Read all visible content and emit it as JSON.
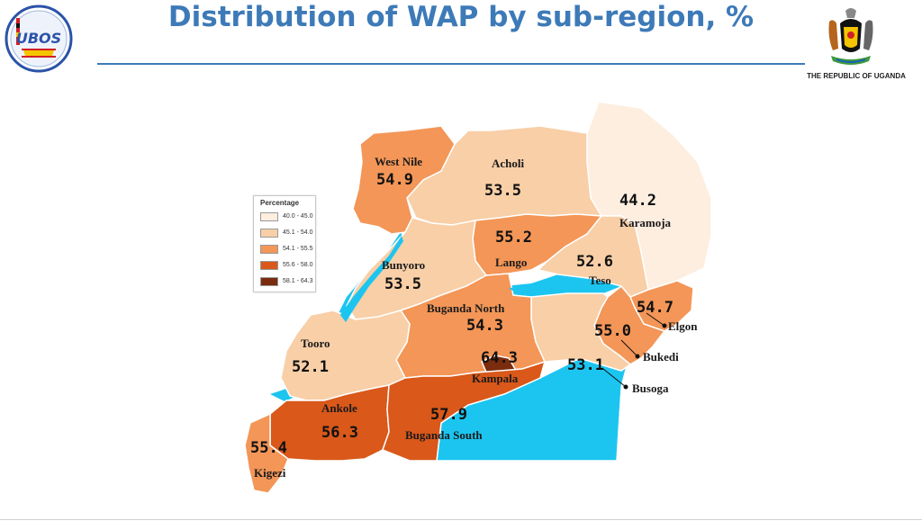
{
  "header": {
    "title": "Distribution of WAP by sub-region, %",
    "logo_text": "UBOS",
    "republic_text": "THE REPUBLIC OF UGANDA"
  },
  "legend": {
    "title": "Percentage",
    "items": [
      {
        "label": "40.0 - 45.0",
        "color": "#fdeee0"
      },
      {
        "label": "45.1 - 54.0",
        "color": "#f8cfa7"
      },
      {
        "label": "54.1 - 55.5",
        "color": "#f39657"
      },
      {
        "label": "55.6 - 58.0",
        "color": "#d9581a"
      },
      {
        "label": "58.1 - 64.3",
        "color": "#7b2b0e"
      }
    ]
  },
  "colors": {
    "water": "#1cc5f0",
    "title": "#3d7ab8",
    "border": "#ffffff"
  },
  "regions": [
    {
      "name": "West Nile",
      "value": "54.9"
    },
    {
      "name": "Acholi",
      "value": "53.5"
    },
    {
      "name": "Karamoja",
      "value": "44.2"
    },
    {
      "name": "Lango",
      "value": "55.2"
    },
    {
      "name": "Teso",
      "value": "52.6"
    },
    {
      "name": "Bunyoro",
      "value": "53.5"
    },
    {
      "name": "Buganda North",
      "value": "54.3"
    },
    {
      "name": "Elgon",
      "value": "54.7"
    },
    {
      "name": "Bukedi",
      "value": "55.0"
    },
    {
      "name": "Tooro",
      "value": "52.1"
    },
    {
      "name": "Kampala",
      "value": "64.3"
    },
    {
      "name": "Busoga",
      "value": "53.1"
    },
    {
      "name": "Ankole",
      "value": "56.3"
    },
    {
      "name": "Buganda South",
      "value": "57.9"
    },
    {
      "name": "Kigezi",
      "value": "55.4"
    }
  ]
}
